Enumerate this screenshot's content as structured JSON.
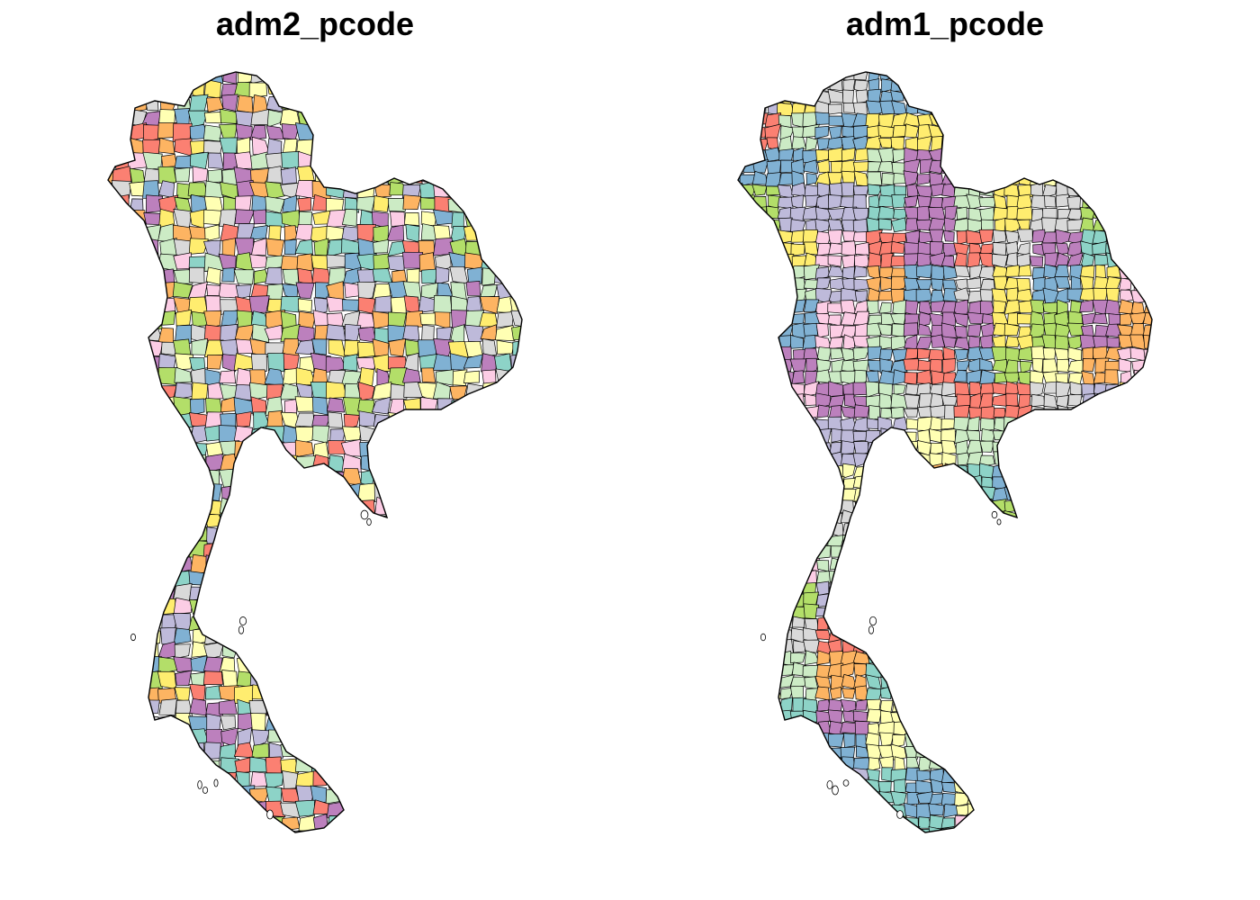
{
  "panels": [
    {
      "title": "adm2_pcode"
    },
    {
      "title": "adm1_pcode"
    }
  ],
  "palette": [
    "#8DD3C7",
    "#FFFFB3",
    "#BEBADA",
    "#FB8072",
    "#80B1D3",
    "#FDB462",
    "#B3DE69",
    "#FCCDE5",
    "#D9D9D9",
    "#BC80BD",
    "#CCEBC5",
    "#FFED6F"
  ],
  "border_color": "#000000"
}
